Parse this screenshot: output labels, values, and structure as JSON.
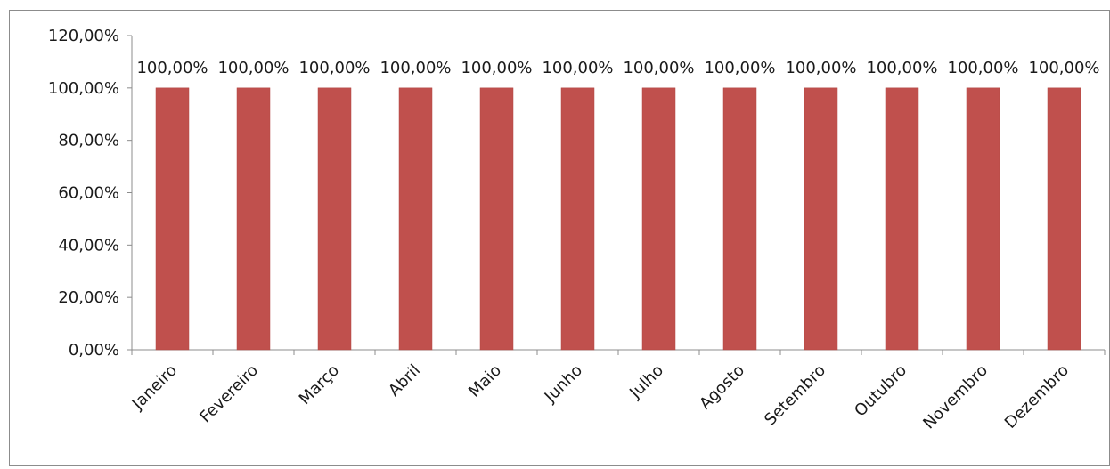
{
  "chart_data": {
    "type": "bar",
    "title": "",
    "xlabel": "",
    "ylabel": "",
    "categories": [
      "Janeiro",
      "Fevereiro",
      "Março",
      "Abril",
      "Maio",
      "Junho",
      "Julho",
      "Agosto",
      "Setembro",
      "Outubro",
      "Novembro",
      "Dezembro"
    ],
    "series": [
      {
        "values": [
          100,
          100,
          100,
          100,
          100,
          100,
          100,
          100,
          100,
          100,
          100,
          100
        ],
        "data_labels": [
          "100,00%",
          "100,00%",
          "100,00%",
          "100,00%",
          "100,00%",
          "100,00%",
          "100,00%",
          "100,00%",
          "100,00%",
          "100,00%",
          "100,00%",
          "100,00%"
        ],
        "color": "#c0504d"
      }
    ],
    "ylim": [
      0,
      120
    ],
    "yticks": [
      0,
      20,
      40,
      60,
      80,
      100,
      120
    ],
    "ytick_labels": [
      "0,00%",
      "20,00%",
      "40,00%",
      "60,00%",
      "80,00%",
      "100,00%",
      "120,00%"
    ],
    "grid": false,
    "legend": "none",
    "axis_color": "#8c8c8c",
    "border_color": "#8c8c8c"
  }
}
